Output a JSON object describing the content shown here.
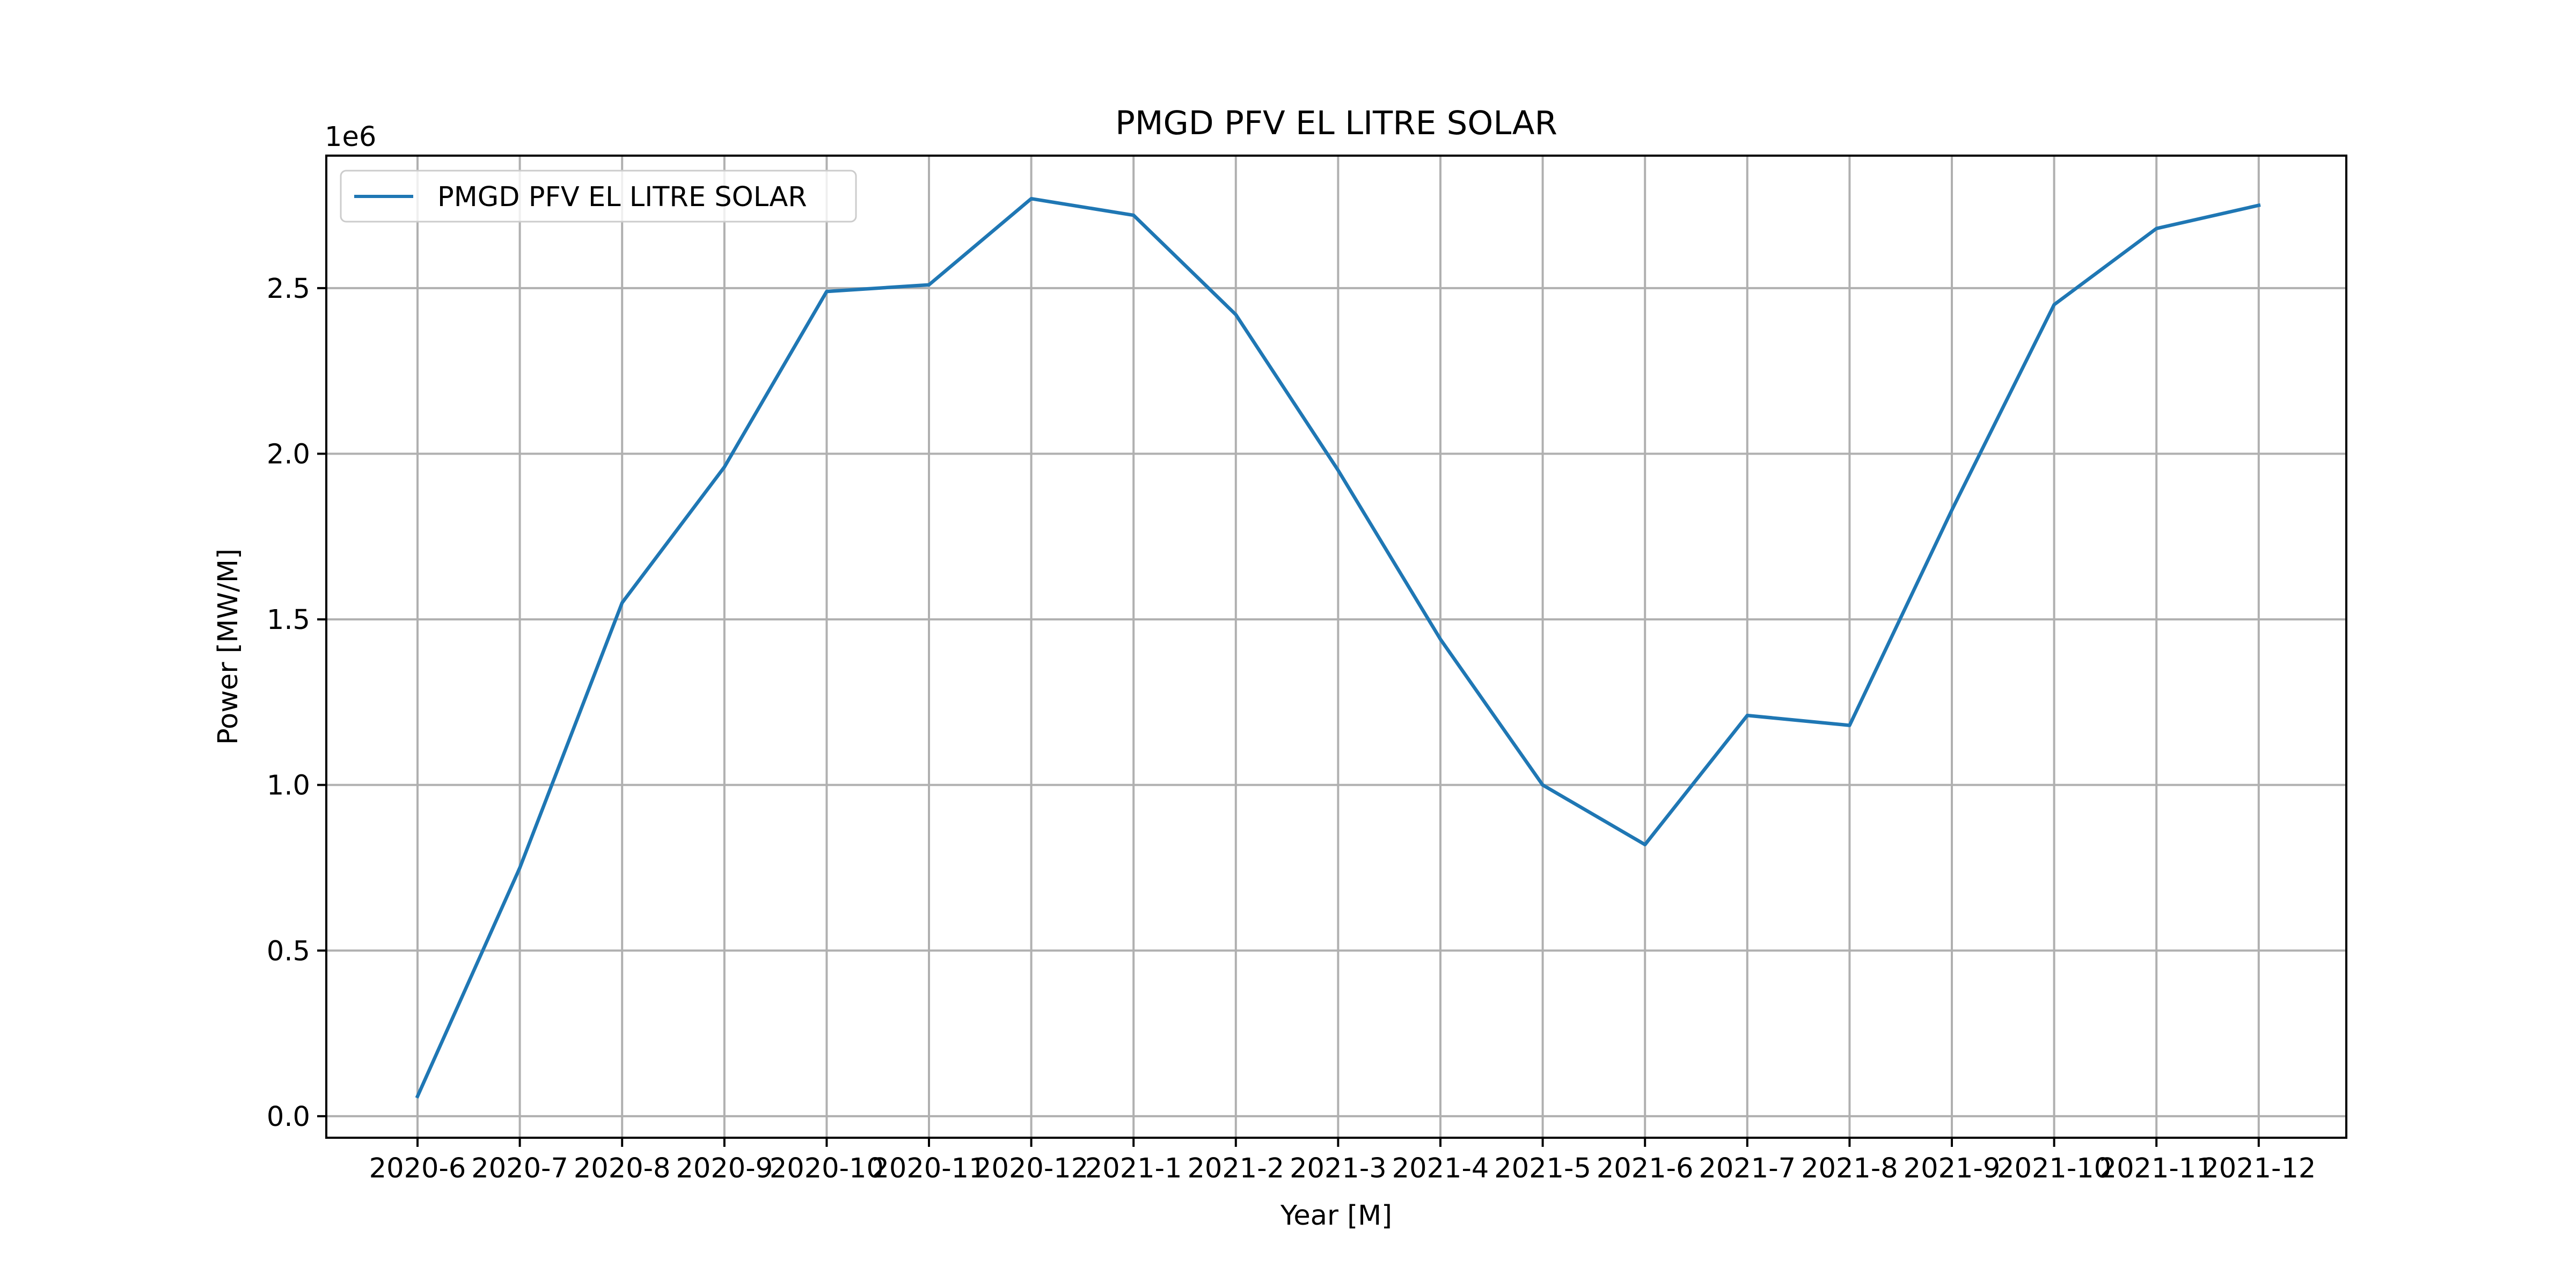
{
  "chart_data": {
    "type": "line",
    "title": "PMGD PFV EL LITRE SOLAR",
    "xlabel": "Year [M]",
    "ylabel": "Power [MW/M]",
    "y_offset_text": "1e6",
    "ylim": [
      -0.065,
      2.9
    ],
    "yticks": [
      0.0,
      0.5,
      1.0,
      1.5,
      2.0,
      2.5
    ],
    "ytick_labels": [
      "0.0",
      "0.5",
      "1.0",
      "1.5",
      "2.0",
      "2.5"
    ],
    "grid": true,
    "legend_position": "upper left",
    "categories": [
      "2020-6",
      "2020-7",
      "2020-8",
      "2020-9",
      "2020-10",
      "2020-11",
      "2020-12",
      "2021-1",
      "2021-2",
      "2021-3",
      "2021-4",
      "2021-5",
      "2021-6",
      "2021-7",
      "2021-8",
      "2021-9",
      "2021-10",
      "2021-11",
      "2021-12"
    ],
    "series": [
      {
        "name": "PMGD PFV EL LITRE SOLAR",
        "color": "#1f77b4",
        "values": [
          0.06,
          0.75,
          1.55,
          1.96,
          2.49,
          2.51,
          2.77,
          2.72,
          2.42,
          1.95,
          1.44,
          1.0,
          0.82,
          1.21,
          1.18,
          1.83,
          2.45,
          2.68,
          2.75
        ]
      }
    ]
  }
}
